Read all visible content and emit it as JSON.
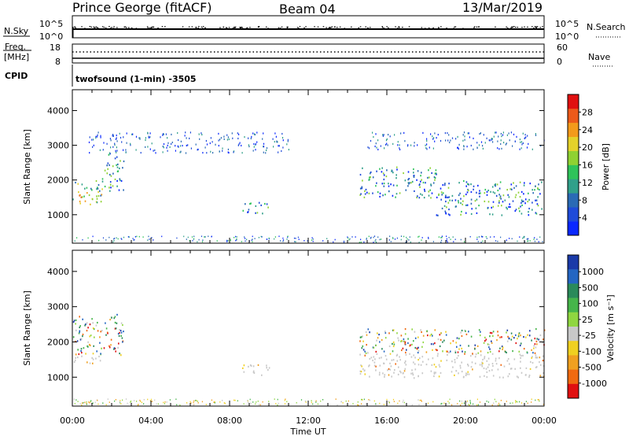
{
  "header": {
    "station": "Prince George (fitACF)",
    "beam": "Beam 04",
    "date": "13/Mar/2019"
  },
  "top_panels": {
    "nsky_label": "N.Sky",
    "nsearch_label": "N.Search",
    "nsky_ticks": [
      "10^5",
      "10^0"
    ],
    "nsearch_ticks": [
      "10^5",
      "10^0"
    ],
    "freq_label": "Freq.",
    "freq_unit": "[MHz]",
    "freq_ticks": [
      "18",
      "8"
    ],
    "nave_label": "Nave",
    "nave_ticks": [
      "60",
      "0"
    ],
    "cpid_label": "CPID",
    "cpid_text": "twofsound (1-min) -3505"
  },
  "chart_data": [
    {
      "type": "heatmap",
      "name": "power",
      "ylabel": "Slant Range [km]",
      "xlabel": "",
      "x_ticks": [
        "00:00",
        "04:00",
        "08:00",
        "12:00",
        "16:00",
        "20:00",
        "00:00"
      ],
      "y_ticks": [
        1000,
        2000,
        3000,
        4000
      ],
      "ylim": [
        180,
        4600
      ],
      "xlim_hours": [
        0,
        24
      ],
      "colorbar": {
        "label": "Power [dB]",
        "ticks": [
          "4",
          "8",
          "12",
          "16",
          "20",
          "24",
          "28"
        ],
        "colors": [
          "#0a28ff",
          "#1f4bd9",
          "#2a6ab5",
          "#31a08a",
          "#2fc35a",
          "#8fd132",
          "#e4d12a",
          "#f39a1b",
          "#ec5a1a",
          "#e01010"
        ]
      },
      "regions": [
        {
          "t0": 0.0,
          "t1": 1.5,
          "r0": 1250,
          "r1": 2000,
          "level": "high"
        },
        {
          "t0": 1.5,
          "t1": 2.6,
          "r0": 1700,
          "r1": 2800,
          "level": "mid"
        },
        {
          "t0": 8.6,
          "t1": 10.0,
          "r0": 1050,
          "r1": 1400,
          "level": "mid"
        },
        {
          "t0": 14.6,
          "t1": 18.5,
          "r0": 1500,
          "r1": 2400,
          "level": "mid"
        },
        {
          "t0": 18.5,
          "t1": 24.0,
          "r0": 1000,
          "r1": 2000,
          "level": "mid"
        },
        {
          "t0": 0.8,
          "t1": 11.0,
          "r0": 2800,
          "r1": 3400,
          "level": "low"
        },
        {
          "t0": 15.0,
          "t1": 24.0,
          "r0": 2900,
          "r1": 3400,
          "level": "low"
        }
      ]
    },
    {
      "type": "heatmap",
      "name": "velocity",
      "ylabel": "Slant Range [km]",
      "xlabel": "Time UT",
      "x_ticks": [
        "00:00",
        "04:00",
        "08:00",
        "12:00",
        "16:00",
        "20:00",
        "00:00"
      ],
      "y_ticks": [
        1000,
        2000,
        3000,
        4000
      ],
      "ylim": [
        180,
        4600
      ],
      "xlim_hours": [
        0,
        24
      ],
      "colorbar": {
        "label": "Velocity [m s⁻¹]",
        "ticks": [
          "1000",
          "500",
          "100",
          "25",
          "-25",
          "-100",
          "-500",
          "-1000"
        ],
        "colors": [
          "#1a3aa8",
          "#2466c2",
          "#2a8a5a",
          "#46b54a",
          "#8fd640",
          "#c8c8c8",
          "#f0d020",
          "#f0a020",
          "#f06a10",
          "#e01010"
        ]
      },
      "regions": [
        {
          "t0": 0.0,
          "t1": 1.5,
          "r0": 1400,
          "r1": 1650,
          "level": "gray"
        },
        {
          "t0": 0.0,
          "t1": 2.6,
          "r0": 1650,
          "r1": 2800,
          "level": "mixed"
        },
        {
          "t0": 8.6,
          "t1": 10.0,
          "r0": 1050,
          "r1": 1400,
          "level": "gray"
        },
        {
          "t0": 14.6,
          "t1": 24.0,
          "r0": 1000,
          "r1": 1700,
          "level": "gray"
        },
        {
          "t0": 14.6,
          "t1": 24.0,
          "r0": 1700,
          "r1": 2400,
          "level": "mixed"
        }
      ]
    }
  ]
}
